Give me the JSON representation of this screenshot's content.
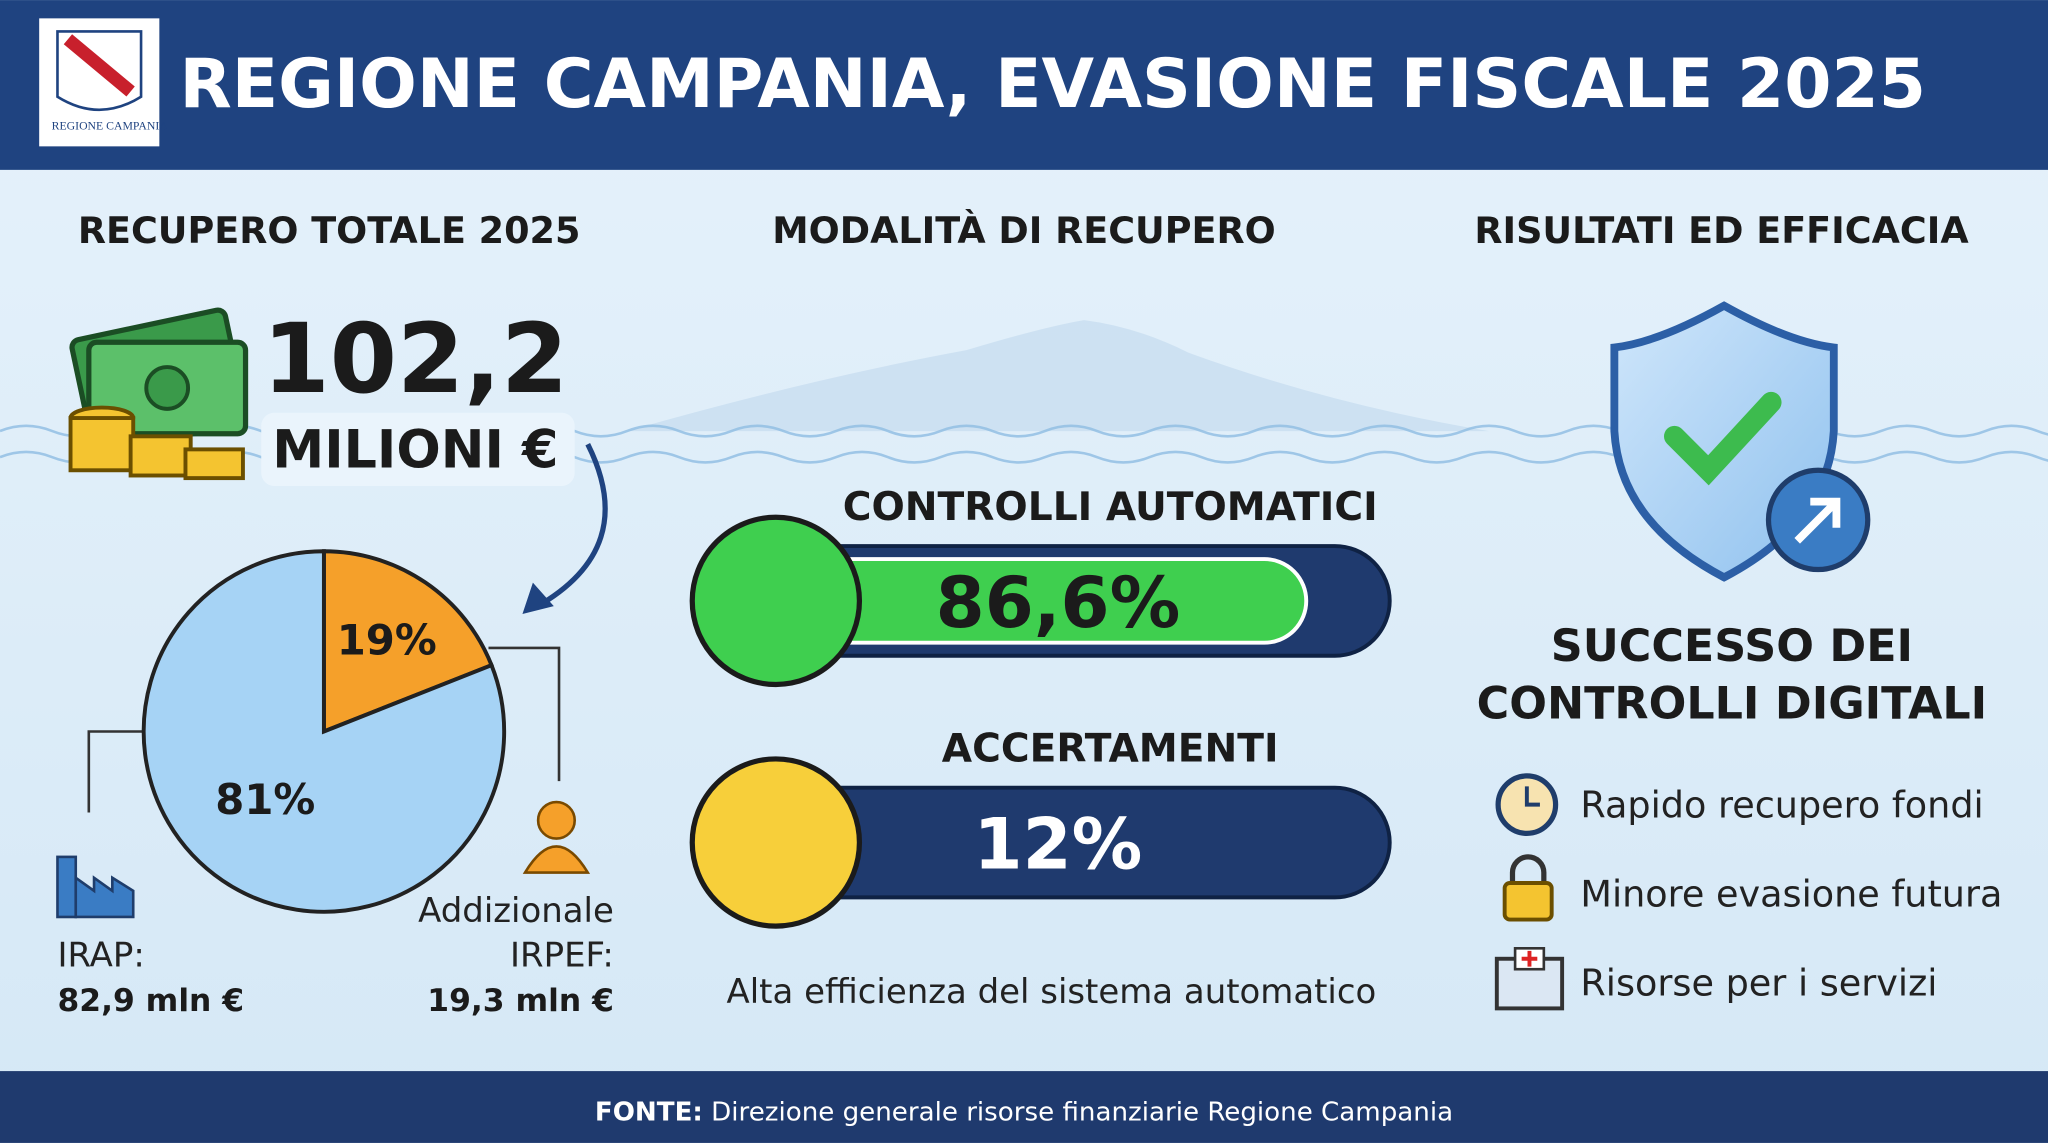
{
  "header": {
    "title": "REGIONE CAMPANIA, EVASIONE FISCALE 2025",
    "logo_text": "REGIONE CAMPANIA"
  },
  "total": {
    "heading": "RECUPERO TOTALE 2025",
    "amount": "102,2",
    "unit": "MILIONI €",
    "pie": {
      "values": [
        19,
        81
      ],
      "value_labels": [
        "19%",
        "81%"
      ],
      "colors": [
        "#f5a02a",
        "#a6d3f5"
      ]
    },
    "items": [
      {
        "label_lines": [
          "IRAP:"
        ],
        "amount": "82,9 mln €"
      },
      {
        "label_lines": [
          "Addizionale",
          "IRPEF:"
        ],
        "amount": "19,3 mln €"
      }
    ]
  },
  "modes": {
    "heading": "MODALITÀ DI RECUPERO",
    "xlim": [
      0,
      100
    ],
    "bars": [
      {
        "name": "CONTROLLI AUTOMATICI",
        "value": 86.6,
        "value_label": "86,6%",
        "color": "#3fcf4f"
      },
      {
        "name": "ACCERTAMENTI",
        "value": 12,
        "value_label": "12%",
        "color": "#f7cf3a"
      }
    ],
    "note": "Alta efficienza del sistema automatico"
  },
  "results": {
    "heading": "RISULTATI ED EFFICACIA",
    "subtitle_lines": [
      "SUCCESSO DEI",
      "CONTROLLI DIGITALI"
    ],
    "items": [
      "Rapido recupero fondi",
      "Minore evasione futura",
      "Risorse per i servizi"
    ]
  },
  "footer": {
    "label": "FONTE:",
    "text": "Direzione generale risorse finanziarie Regione Campania"
  }
}
